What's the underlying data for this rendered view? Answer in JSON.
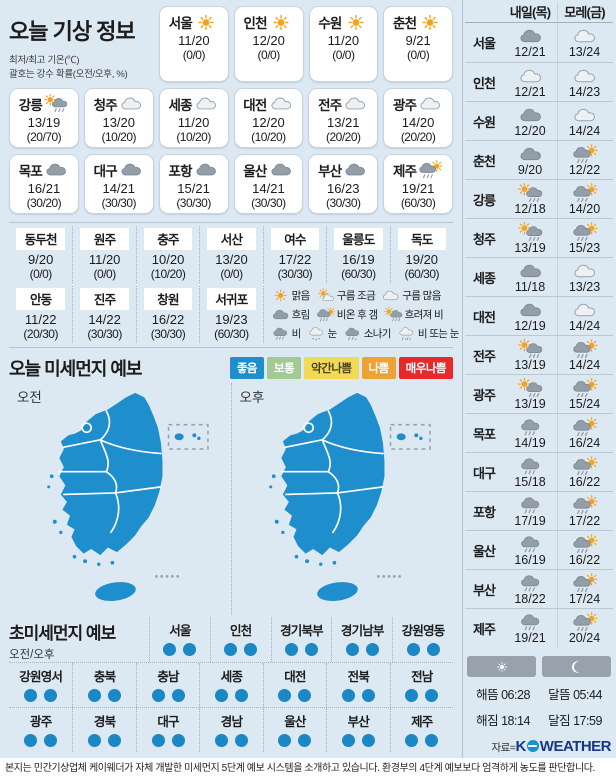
{
  "page": {
    "footer": "본지는 민간기상업체 케이웨더가 자체 개발한 미세먼지 5단계 예보 시스템을 소개하고 있습니다. 환경부의 4단계 예보보다 엄격하게 농도를 판단합니다.",
    "source_label": "자료=",
    "logo_k": "K",
    "logo_weather": "WEATHER"
  },
  "today": {
    "title": "오늘 기상 정보",
    "subtitle1": "최저/최고 기온(℃)",
    "subtitle2": "괄호는 강수 확률(오전/오후, %)",
    "cards_row1": [
      {
        "city": "서울",
        "icon": "sun",
        "temp": "11/20",
        "prob": "(0/0)"
      },
      {
        "city": "인천",
        "icon": "sun",
        "temp": "12/20",
        "prob": "(0/0)"
      },
      {
        "city": "수원",
        "icon": "sun",
        "temp": "11/20",
        "prob": "(0/0)"
      },
      {
        "city": "춘천",
        "icon": "sun",
        "temp": "9/21",
        "prob": "(0/0)"
      }
    ],
    "cards_row2": [
      {
        "city": "강릉",
        "icon": "sun-rain",
        "temp": "13/19",
        "prob": "(20/70)"
      },
      {
        "city": "청주",
        "icon": "cloud-light",
        "temp": "13/20",
        "prob": "(10/20)"
      },
      {
        "city": "세종",
        "icon": "cloud-light",
        "temp": "11/20",
        "prob": "(10/20)"
      },
      {
        "city": "대전",
        "icon": "cloud-light",
        "temp": "12/20",
        "prob": "(10/20)"
      },
      {
        "city": "전주",
        "icon": "cloud-light",
        "temp": "13/21",
        "prob": "(20/20)"
      },
      {
        "city": "광주",
        "icon": "cloud-light",
        "temp": "14/20",
        "prob": "(20/20)"
      }
    ],
    "cards_row3": [
      {
        "city": "목포",
        "icon": "cloud-dark",
        "temp": "16/21",
        "prob": "(30/20)"
      },
      {
        "city": "대구",
        "icon": "cloud-dark",
        "temp": "14/21",
        "prob": "(30/30)"
      },
      {
        "city": "포항",
        "icon": "cloud-dark",
        "temp": "15/21",
        "prob": "(30/30)"
      },
      {
        "city": "울산",
        "icon": "cloud-dark",
        "temp": "14/21",
        "prob": "(30/30)"
      },
      {
        "city": "부산",
        "icon": "cloud-dark",
        "temp": "16/23",
        "prob": "(30/30)"
      },
      {
        "city": "제주",
        "icon": "rain-sun",
        "temp": "19/21",
        "prob": "(60/30)"
      }
    ],
    "minor_row1": [
      {
        "city": "동두천",
        "temp": "9/20",
        "prob": "(0/0)"
      },
      {
        "city": "원주",
        "temp": "11/20",
        "prob": "(0/0)"
      },
      {
        "city": "충주",
        "temp": "10/20",
        "prob": "(10/20)"
      },
      {
        "city": "서산",
        "temp": "13/20",
        "prob": "(0/0)"
      },
      {
        "city": "여수",
        "temp": "17/22",
        "prob": "(30/30)"
      },
      {
        "city": "울릉도",
        "temp": "16/19",
        "prob": "(60/30)"
      },
      {
        "city": "독도",
        "temp": "19/20",
        "prob": "(60/30)"
      }
    ],
    "minor_row2": [
      {
        "city": "안동",
        "temp": "11/22",
        "prob": "(20/30)"
      },
      {
        "city": "진주",
        "temp": "14/22",
        "prob": "(30/30)"
      },
      {
        "city": "창원",
        "temp": "16/22",
        "prob": "(30/30)"
      },
      {
        "city": "서귀포",
        "temp": "19/23",
        "prob": "(60/30)"
      }
    ],
    "legend1": [
      {
        "icon": "sun",
        "label": "맑음"
      },
      {
        "icon": "sun-cloud",
        "label": "구름 조금"
      },
      {
        "icon": "cloud-light",
        "label": "구름 많음"
      }
    ],
    "legend2": [
      {
        "icon": "cloud-dark",
        "label": "흐림"
      },
      {
        "icon": "rain-sun",
        "label": "비온 후 갬"
      },
      {
        "icon": "sun-rain",
        "label": "흐려져 비"
      }
    ],
    "legend3": [
      {
        "icon": "rain",
        "label": "비"
      },
      {
        "icon": "snow",
        "label": "눈"
      },
      {
        "icon": "shower",
        "label": "소나기"
      },
      {
        "icon": "rain-snow",
        "label": "비 또는 눈"
      }
    ]
  },
  "dust": {
    "title": "오늘 미세먼지 예보",
    "map_am_label": "오전",
    "map_pm_label": "오후",
    "map_fill": "#1e8ecd",
    "levels": [
      {
        "label": "좋음",
        "bg": "#1e8ecd",
        "fg": "#ffffff"
      },
      {
        "label": "보통",
        "bg": "#a3ca92",
        "fg": "#ffffff"
      },
      {
        "label": "약간나쁨",
        "bg": "#f2da56",
        "fg": "#4a4418"
      },
      {
        "label": "나쁨",
        "bg": "#eda233",
        "fg": "#ffffff"
      },
      {
        "label": "매우나쁨",
        "bg": "#e62a2a",
        "fg": "#ffffff"
      }
    ]
  },
  "ultrafine": {
    "title": "초미세먼지 예보",
    "sub": "오전/오후",
    "dot_color": "#1b87c4",
    "row1": [
      "서울",
      "인천",
      "경기북부",
      "경기남부",
      "강원영동"
    ],
    "row2": [
      "강원영서",
      "충북",
      "충남",
      "세종",
      "대전",
      "전북",
      "전남"
    ],
    "row3": [
      "광주",
      "경북",
      "대구",
      "경남",
      "울산",
      "부산",
      "제주"
    ]
  },
  "outlook": {
    "col1": "내일(목)",
    "col2": "모레(금)",
    "rows": [
      {
        "city": "서울",
        "icon1": "cloud-dark",
        "t1": "12/21",
        "icon2": "cloud-light",
        "t2": "13/24"
      },
      {
        "city": "인천",
        "icon1": "cloud-light",
        "t1": "12/21",
        "icon2": "cloud-light",
        "t2": "14/23"
      },
      {
        "city": "수원",
        "icon1": "cloud-dark",
        "t1": "12/20",
        "icon2": "cloud-light",
        "t2": "14/24"
      },
      {
        "city": "춘천",
        "icon1": "cloud-dark",
        "t1": "9/20",
        "icon2": "rain-sun",
        "t2": "12/22"
      },
      {
        "city": "강릉",
        "icon1": "sun-rain",
        "t1": "12/18",
        "icon2": "rain-sun",
        "t2": "14/20"
      },
      {
        "city": "청주",
        "icon1": "sun-rain",
        "t1": "13/19",
        "icon2": "rain-sun",
        "t2": "15/23"
      },
      {
        "city": "세종",
        "icon1": "cloud-dark",
        "t1": "11/18",
        "icon2": "cloud-light",
        "t2": "13/23"
      },
      {
        "city": "대전",
        "icon1": "cloud-dark",
        "t1": "12/19",
        "icon2": "cloud-light",
        "t2": "14/24"
      },
      {
        "city": "전주",
        "icon1": "sun-rain",
        "t1": "13/19",
        "icon2": "rain-sun",
        "t2": "14/24"
      },
      {
        "city": "광주",
        "icon1": "sun-rain",
        "t1": "13/19",
        "icon2": "rain-sun",
        "t2": "15/24"
      },
      {
        "city": "목포",
        "icon1": "rain",
        "t1": "14/19",
        "icon2": "rain-sun",
        "t2": "16/24"
      },
      {
        "city": "대구",
        "icon1": "rain",
        "t1": "15/18",
        "icon2": "rain-sun",
        "t2": "16/22"
      },
      {
        "city": "포항",
        "icon1": "rain",
        "t1": "17/19",
        "icon2": "rain-sun",
        "t2": "17/22"
      },
      {
        "city": "울산",
        "icon1": "rain",
        "t1": "16/19",
        "icon2": "rain-sun",
        "t2": "16/22"
      },
      {
        "city": "부산",
        "icon1": "rain",
        "t1": "18/22",
        "icon2": "rain-sun",
        "t2": "17/24"
      },
      {
        "city": "제주",
        "icon1": "rain",
        "t1": "19/21",
        "icon2": "rain-sun",
        "t2": "20/24"
      }
    ],
    "sun": {
      "rise_label": "해뜸",
      "rise": "06:28",
      "set_label": "해짐",
      "set": "18:14"
    },
    "moon": {
      "rise_label": "달뜸",
      "rise": "05:44",
      "set_label": "달짐",
      "set": "17:59"
    }
  }
}
